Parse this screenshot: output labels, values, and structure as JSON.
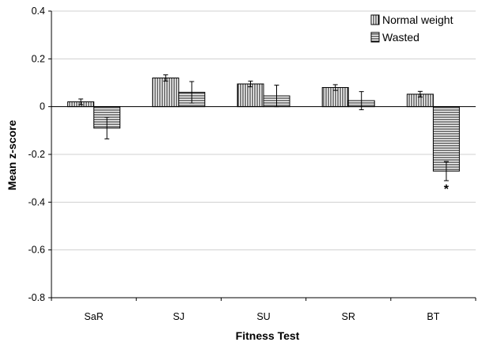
{
  "chart_data": {
    "type": "bar",
    "xlabel": "Fitness Test",
    "ylabel": "Mean z-score",
    "ylim": [
      -0.8,
      0.4
    ],
    "yticks": [
      "0.4",
      "0.2",
      "0",
      "-0.2",
      "-0.4",
      "-0.6",
      "-0.8"
    ],
    "ytick_values": [
      0.4,
      0.2,
      0,
      -0.2,
      -0.4,
      -0.6,
      -0.8
    ],
    "grid": true,
    "legend_position": "top-right",
    "categories": [
      "SaR",
      "SJ",
      "SU",
      "SR",
      "BT"
    ],
    "series": [
      {
        "name": "Normal weight",
        "pattern": "vertical-stripes",
        "values": [
          0.02,
          0.12,
          0.095,
          0.08,
          0.052
        ],
        "error": [
          0.012,
          0.013,
          0.012,
          0.012,
          0.012
        ]
      },
      {
        "name": "Wasted",
        "pattern": "horizontal-stripes",
        "values": [
          -0.09,
          0.06,
          0.045,
          0.025,
          -0.27
        ],
        "error": [
          0.045,
          0.045,
          0.045,
          0.038,
          0.04
        ]
      }
    ],
    "annotations": [
      {
        "category": "BT",
        "series": "Wasted",
        "text": "*"
      }
    ]
  }
}
